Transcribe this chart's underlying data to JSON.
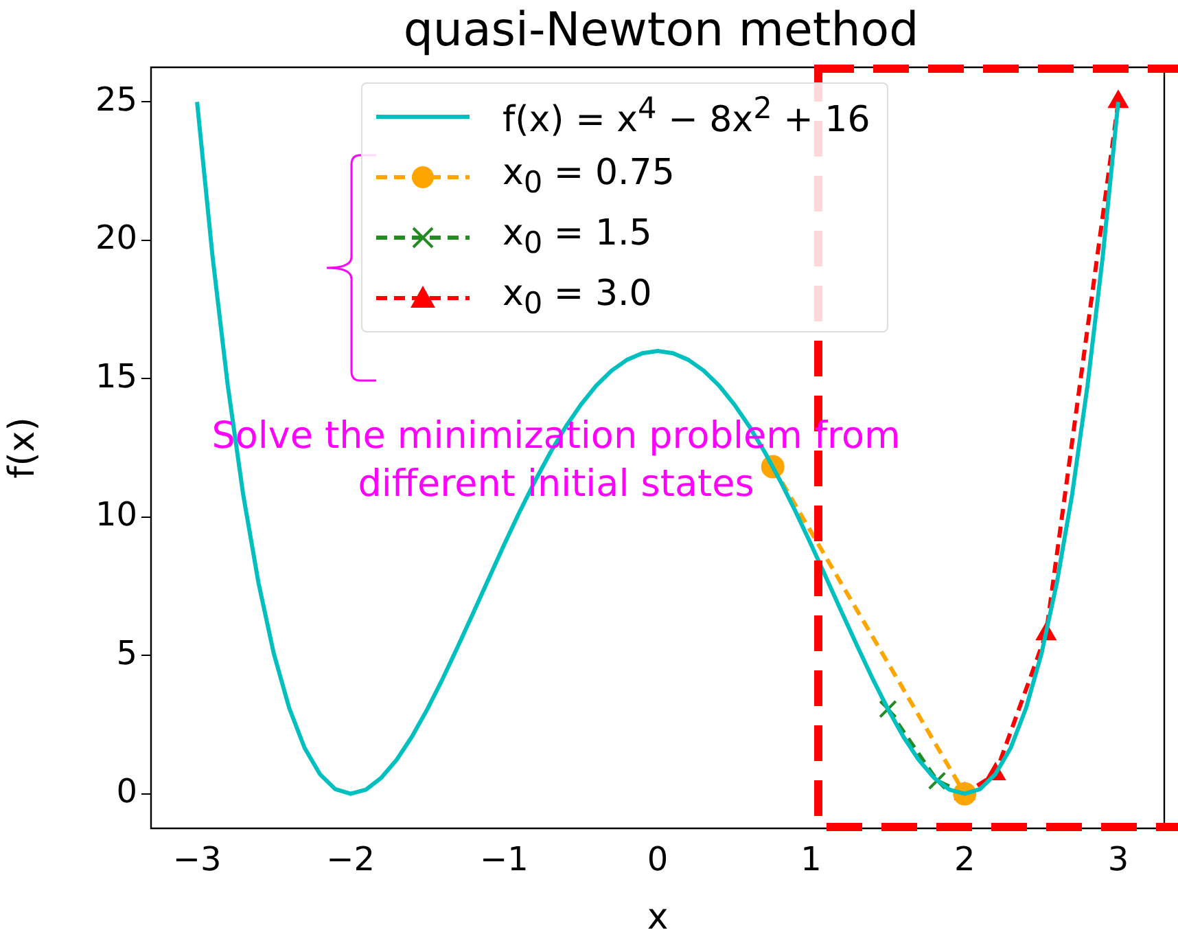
{
  "chart_data": {
    "type": "line",
    "title": "quasi-Newton method",
    "xlabel": "x",
    "ylabel": "f(x)",
    "xlim": [
      -3.3,
      3.3
    ],
    "xticks": [
      {
        "value": -3,
        "label": "−3"
      },
      {
        "value": -2,
        "label": "−2"
      },
      {
        "value": -1,
        "label": "−1"
      },
      0,
      1,
      2,
      3
    ],
    "ylim": [
      -1.25,
      26.25
    ],
    "yticks": [
      0,
      5,
      10,
      15,
      20,
      25
    ],
    "grid": false,
    "legend": "top",
    "annotations": [
      "Solve the minimization problem from different initial states"
    ],
    "series": [
      {
        "name": "f(x) = x$^{4}$ − 8x$^{2}$ + 16",
        "color": "#00bfbf",
        "marker": "none",
        "line_style": "solid",
        "x": [
          -3,
          -2.9,
          -2.8,
          -2.7,
          -2.6,
          -2.5,
          -2.4,
          -2.3,
          -2.2,
          -2.1,
          -2,
          -1.9,
          -1.8,
          -1.7,
          -1.6,
          -1.5,
          -1.4,
          -1.3,
          -1.2,
          -1.1,
          -1,
          -0.9,
          -0.8,
          -0.7,
          -0.6,
          -0.5,
          -0.4,
          -0.3,
          -0.2,
          -0.1,
          0,
          0.1,
          0.2,
          0.3,
          0.4,
          0.5,
          0.6,
          0.7,
          0.8,
          0.9,
          1,
          1.1,
          1.2,
          1.3,
          1.4,
          1.5,
          1.6,
          1.7,
          1.8,
          1.9,
          2,
          2.1,
          2.2,
          2.3,
          2.4,
          2.5,
          2.6,
          2.7,
          2.8,
          2.9,
          3
        ],
        "values": [
          25,
          19.45,
          14.75,
          10.82,
          7.62,
          5.06,
          3.1,
          1.66,
          0.71,
          0.17,
          0,
          0.15,
          0.58,
          1.23,
          2.07,
          3.06,
          4.16,
          5.34,
          6.55,
          7.78,
          9,
          10.18,
          11.29,
          12.32,
          13.25,
          14.06,
          14.75,
          15.29,
          15.68,
          15.92,
          16,
          15.92,
          15.68,
          15.29,
          14.75,
          14.06,
          13.25,
          12.32,
          11.29,
          10.18,
          9,
          7.78,
          6.55,
          5.34,
          4.16,
          3.06,
          2.07,
          1.23,
          0.58,
          0.15,
          0,
          0.17,
          0.71,
          1.66,
          3.1,
          5.06,
          7.62,
          10.82,
          14.75,
          19.45,
          25
        ]
      },
      {
        "name": "x$_{0}$ = 0.75",
        "color": "#ffa500",
        "marker": "circle",
        "line_style": "dashed",
        "x": [
          0.75,
          2.0
        ],
        "values": [
          11.82,
          0
        ]
      },
      {
        "name": "x$_{0}$ = 1.5",
        "color": "#228b22",
        "marker": "cross",
        "line_style": "dashed",
        "x": [
          1.5,
          1.82,
          1.95,
          2.0
        ],
        "values": [
          3.06,
          0.47,
          null,
          0
        ]
      },
      {
        "name": "x$_{0}$ = 3.0",
        "color": "#ff0000",
        "marker": "triangle",
        "line_style": "dashed",
        "x": [
          3.0,
          2.53,
          2.2,
          2.03,
          2.0
        ],
        "values": [
          25,
          5.77,
          0.71,
          null,
          0
        ]
      }
    ]
  }
}
